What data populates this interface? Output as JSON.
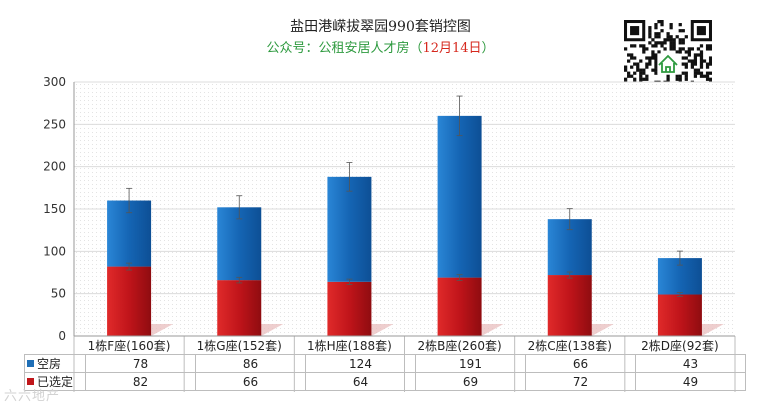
{
  "header": {
    "title": "盐田港嵘拔翠园990套销控图",
    "subtitle_prefix": "公众号：公租安居人才房（",
    "subtitle_date": "12月14日",
    "subtitle_suffix": "）"
  },
  "qr": {
    "icon": "house-icon"
  },
  "watermark": "六六地产",
  "colors": {
    "vacant": "#1f6fb7",
    "selected": "#c0161a"
  },
  "chart_data": {
    "type": "bar",
    "stacked": true,
    "categories": [
      "1栋F座(160套)",
      "1栋G座(152套)",
      "1栋H座(188套)",
      "2栋B座(260套)",
      "2栋C座(138套)",
      "2栋D座(92套)"
    ],
    "series": [
      {
        "name": "空房",
        "values": [
          78,
          86,
          124,
          191,
          66,
          43
        ]
      },
      {
        "name": "已选定",
        "values": [
          82,
          66,
          64,
          69,
          72,
          49
        ]
      }
    ],
    "ylim": [
      0,
      300
    ],
    "yticks": [
      0,
      50,
      100,
      150,
      200,
      250,
      300
    ],
    "error_bars": true,
    "grid": true
  }
}
